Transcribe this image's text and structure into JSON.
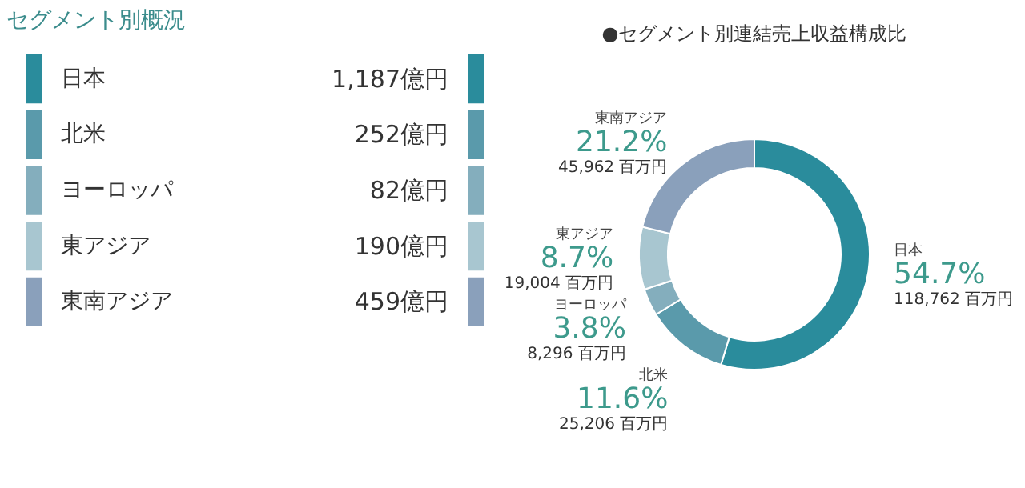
{
  "chart_data": [
    {
      "type": "other",
      "title": "セグメント別概況",
      "categories": [
        "日本",
        "北米",
        "ヨーロッパ",
        "東アジア",
        "東南アジア"
      ],
      "value_labels": [
        "1,187億円",
        "252億円",
        "82億円",
        "190億円",
        "459億円"
      ],
      "colors": [
        "#2a8c9c",
        "#5a9aab",
        "#84aebd",
        "#a8c6d0",
        "#8aa0bb"
      ]
    },
    {
      "type": "donut",
      "title": "●セグメント別連結売上収益構成比",
      "categories": [
        "日本",
        "北米",
        "ヨーロッパ",
        "東アジア",
        "東南アジア"
      ],
      "values": [
        118762,
        25206,
        8296,
        19004,
        45962
      ],
      "value_labels": [
        "54.7%\n118,762 百万円",
        "11.6%\n25,206 百万円",
        "3.8%\n8,296 百万円",
        "8.7%\n19,004 百万円",
        "21.2%\n45,962 百万円"
      ],
      "colors": [
        "#2a8c9c",
        "#5a9aab",
        "#84aebd",
        "#a8c6d0",
        "#8aa0bb"
      ]
    }
  ]
}
